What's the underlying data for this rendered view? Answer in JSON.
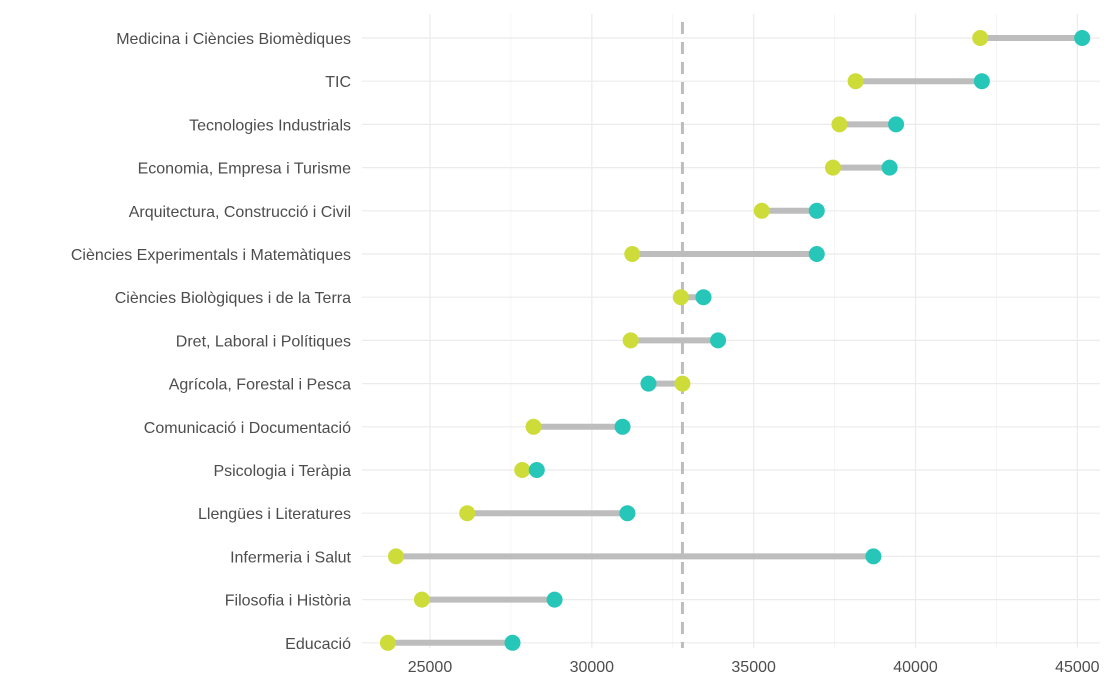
{
  "chart_data": {
    "type": "dumbbell",
    "title": "",
    "xlabel": "",
    "ylabel": "",
    "xlim": [
      22900,
      45700
    ],
    "x_ticks": [
      25000,
      30000,
      35000,
      40000,
      45000
    ],
    "grid": true,
    "legend": "none",
    "reference_line": {
      "x": 32800,
      "style": "dashed",
      "color": "#bdbdbd"
    },
    "categories": [
      "Medicina i Ciències Biomèdiques",
      "TIC",
      "Tecnologies Industrials",
      "Economia, Empresa i Turisme",
      "Arquitectura, Construcció i Civil",
      "Ciències Experimentals i Matemàtiques",
      "Ciències Biològiques i de la Terra",
      "Dret, Laboral i Polítiques",
      "Agrícola, Forestal i Pesca",
      "Comunicació i Documentació",
      "Psicologia i Teràpia",
      "Llengües i Literatures",
      "Infermeria i Salut",
      "Filosofia i Història",
      "Educació"
    ],
    "series": [
      {
        "color": "#cddc39",
        "values": [
          42000,
          38150,
          37650,
          37450,
          35250,
          31250,
          32750,
          31200,
          32800,
          28200,
          27850,
          26150,
          23950,
          24750,
          23700
        ]
      },
      {
        "color": "#26c6b9",
        "values": [
          45150,
          42050,
          39400,
          39200,
          36950,
          36950,
          33450,
          33900,
          31750,
          30950,
          28300,
          31100,
          38700,
          28850,
          27550
        ]
      }
    ]
  }
}
